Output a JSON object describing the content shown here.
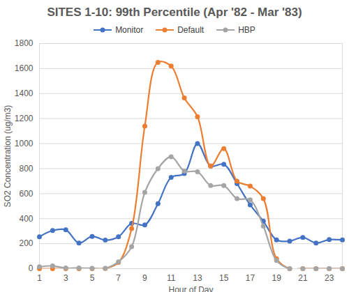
{
  "chart_data": {
    "type": "line",
    "title": "SITES 1-10: 99th Percentile (Apr '82 - Mar '83)",
    "x_label": "Hour of Day",
    "y_label": "SO2 Concentration (ug/m3)",
    "x": [
      1,
      2,
      3,
      4,
      5,
      6,
      7,
      8,
      9,
      10,
      11,
      12,
      13,
      14,
      15,
      16,
      17,
      18,
      19,
      20,
      21,
      22,
      23,
      24
    ],
    "series": [
      {
        "name": "Monitor",
        "color": "#4472c4",
        "marker": "circle",
        "values": [
          255,
          305,
          310,
          205,
          258,
          228,
          255,
          362,
          350,
          520,
          730,
          760,
          1000,
          820,
          835,
          680,
          510,
          380,
          230,
          220,
          250,
          205,
          232,
          230
        ]
      },
      {
        "name": "Default",
        "color": "#ed7d31",
        "marker": "circle",
        "values": [
          0,
          0,
          0,
          0,
          0,
          2,
          50,
          320,
          1140,
          1650,
          1620,
          1365,
          1215,
          820,
          960,
          700,
          660,
          560,
          80,
          0,
          0,
          0,
          0,
          0
        ]
      },
      {
        "name": "HBP",
        "color": "#a5a5a5",
        "marker": "circle",
        "values": [
          15,
          22,
          5,
          5,
          3,
          3,
          55,
          175,
          610,
          800,
          895,
          780,
          775,
          665,
          665,
          560,
          550,
          340,
          65,
          0,
          0,
          0,
          0,
          0
        ]
      }
    ],
    "xlim": [
      1,
      24
    ],
    "xticks": [
      1,
      3,
      5,
      7,
      9,
      11,
      13,
      15,
      17,
      19,
      21,
      23
    ],
    "ylim": [
      0,
      1800
    ],
    "yticks": [
      0,
      200,
      400,
      600,
      800,
      1000,
      1200,
      1400,
      1600,
      1800
    ],
    "grid": true,
    "legend": "top"
  }
}
